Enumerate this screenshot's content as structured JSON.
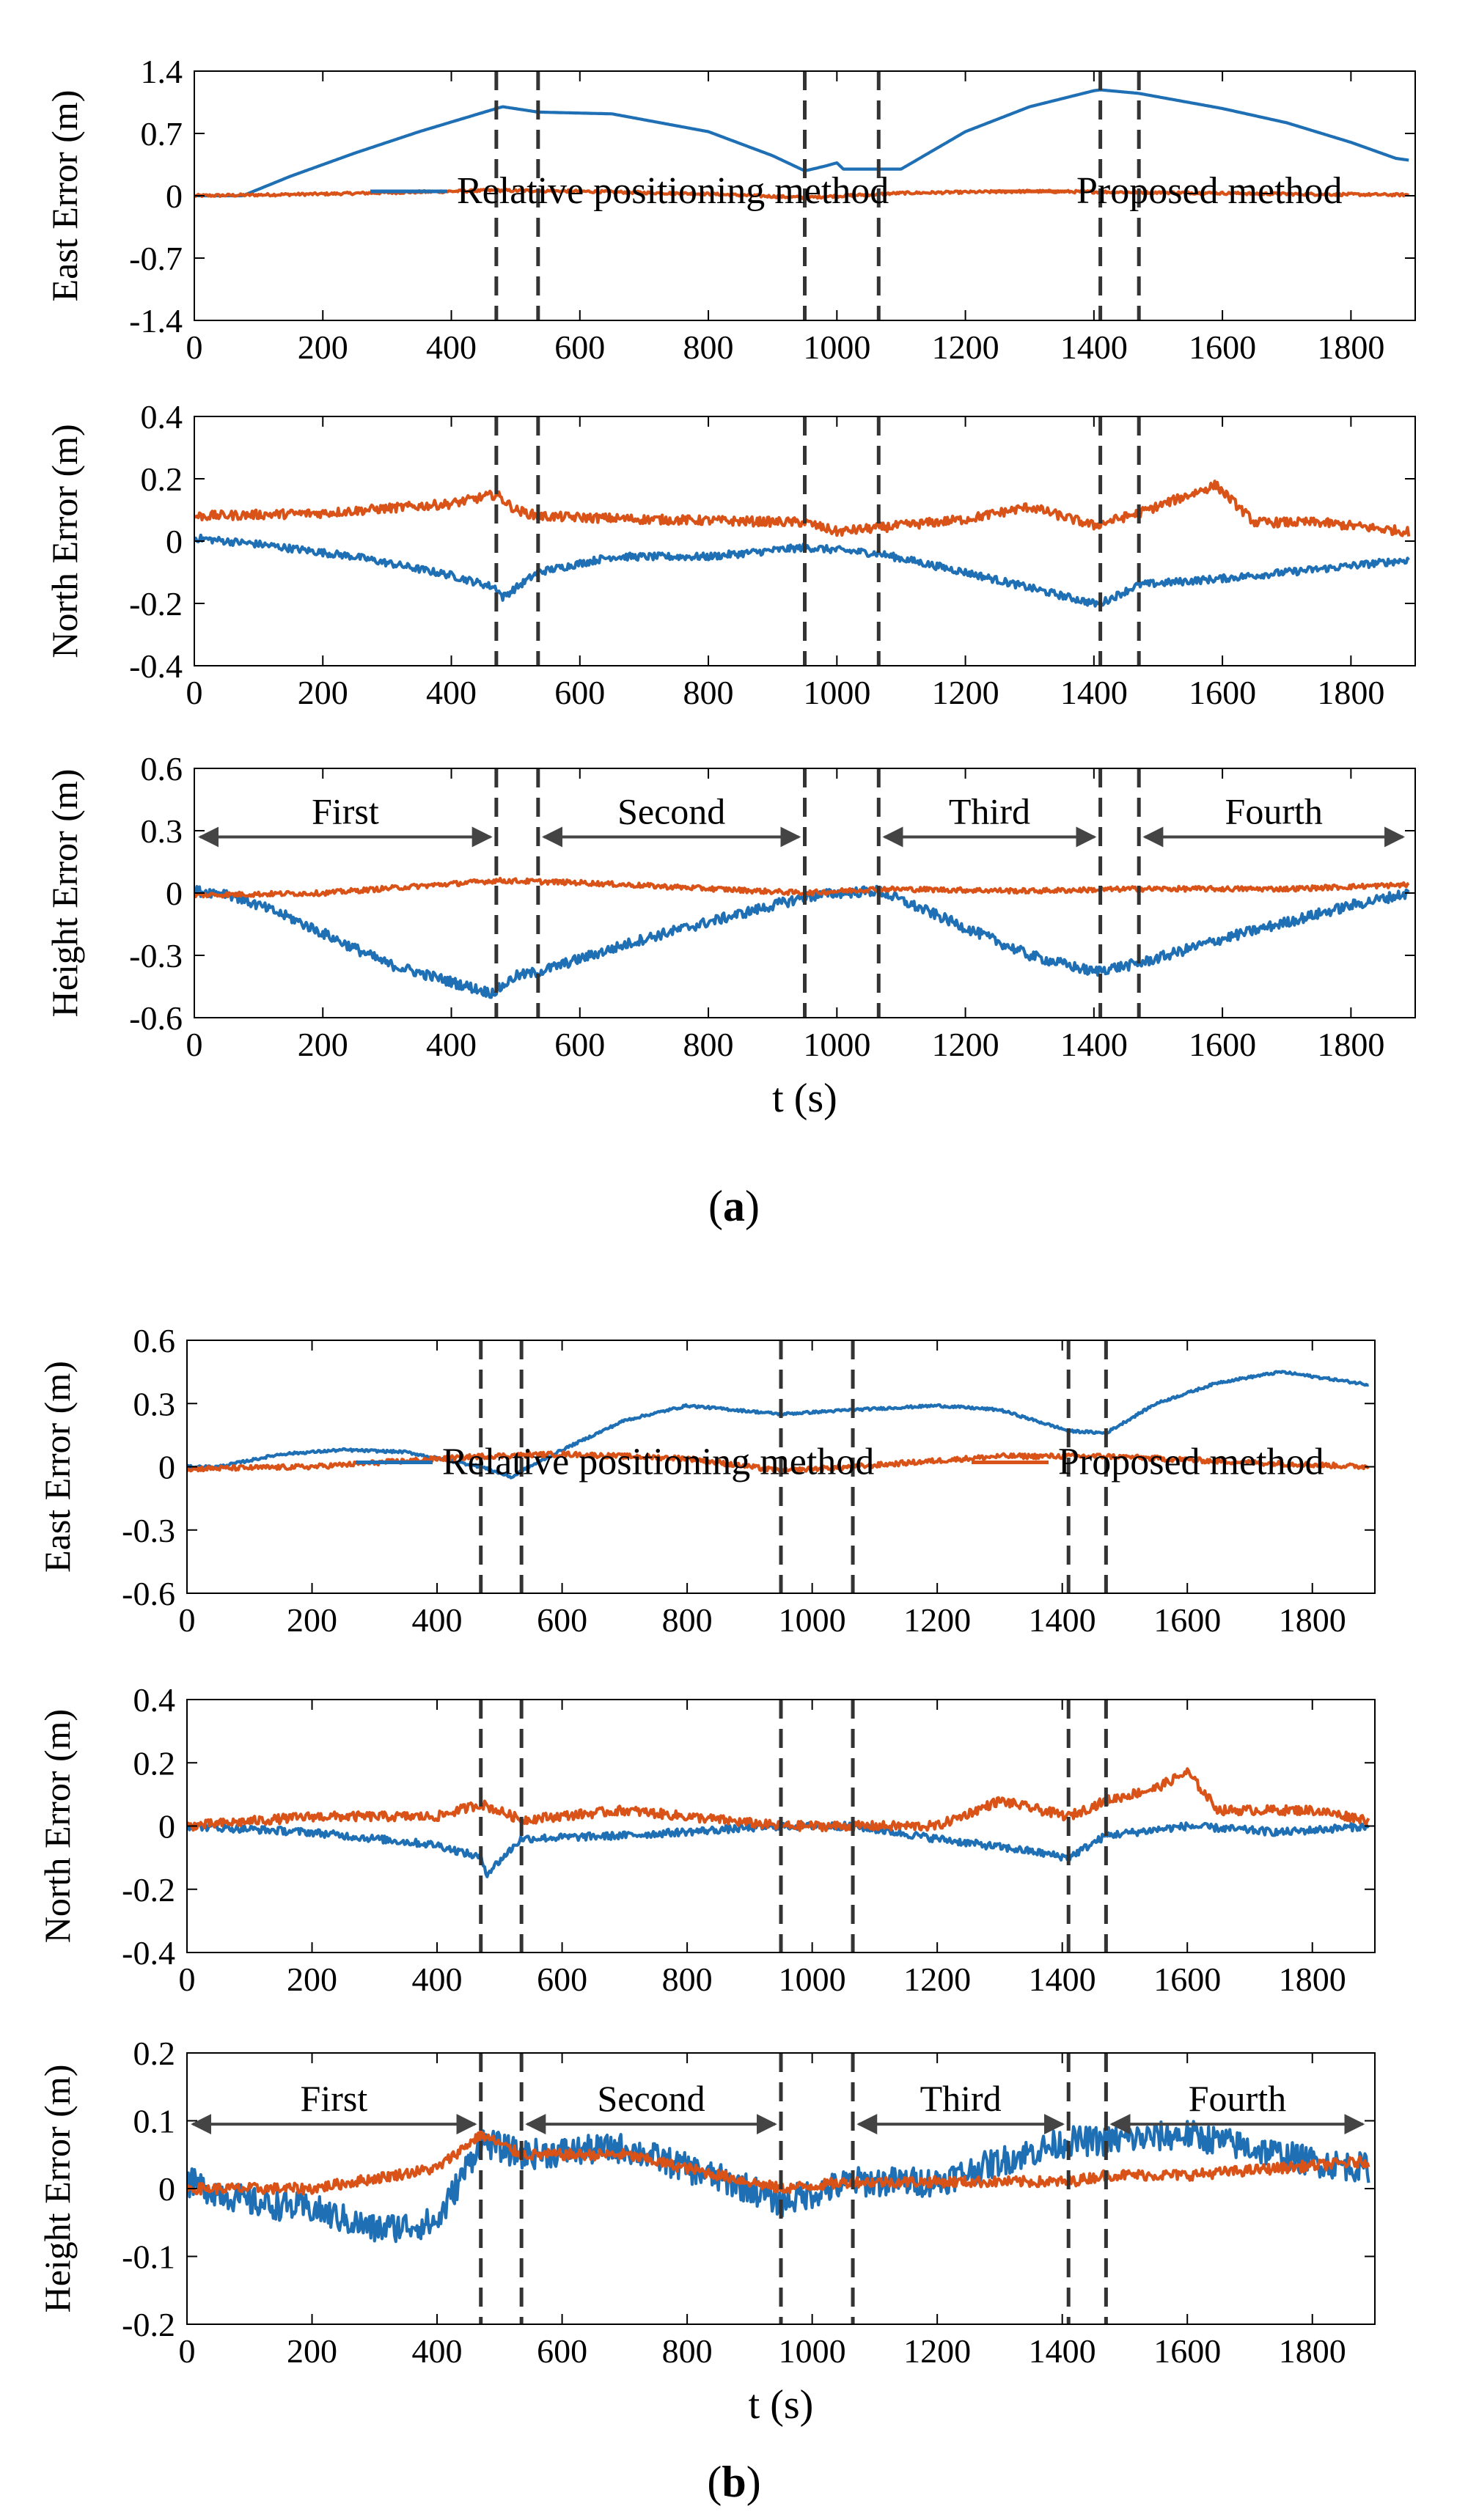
{
  "colors": {
    "relative": "#1f6fb5",
    "proposed": "#d95319",
    "divider": "#333333",
    "axis": "#000000"
  },
  "panels": [
    {
      "id": "a",
      "caption_label": "a",
      "caption_open": "(",
      "caption_close": ")",
      "xlabel": "t (s)"
    },
    {
      "id": "b",
      "caption_label": "b",
      "caption_open": "(",
      "caption_close": ")",
      "xlabel": "t (s)"
    }
  ],
  "chart_data": [
    {
      "type": "line",
      "panel": "a",
      "title": "East Error (m)",
      "ylabel": "East Error (m)",
      "xlim": [
        0,
        1900
      ],
      "ylim": [
        -1.4,
        1.4
      ],
      "xticks": [
        0,
        200,
        400,
        600,
        800,
        1000,
        1200,
        1400,
        1600,
        1800
      ],
      "yticks": [
        -1.4,
        -0.7,
        0,
        0.7,
        1.4
      ],
      "ytick_labels": [
        "-1.4",
        "-0.7",
        "0",
        "0.7",
        "1.4"
      ],
      "dividers": [
        470,
        535,
        950,
        1065,
        1410,
        1470
      ],
      "legend": [
        {
          "name": "Relative positioning method",
          "color": "#1f6fb5"
        },
        {
          "name": "Proposed method",
          "color": "#d95319"
        }
      ],
      "series": [
        {
          "name": "Relative positioning method",
          "color": "#1f6fb5",
          "x": [
            0,
            75,
            150,
            250,
            350,
            470,
            480,
            535,
            650,
            800,
            900,
            950,
            980,
            1000,
            1010,
            1065,
            1100,
            1200,
            1300,
            1400,
            1410,
            1470,
            1600,
            1700,
            1800,
            1870,
            1890
          ],
          "y": [
            0,
            0,
            0.22,
            0.48,
            0.72,
            0.98,
            1.0,
            0.94,
            0.92,
            0.72,
            0.45,
            0.28,
            0.33,
            0.37,
            0.3,
            0.3,
            0.3,
            0.72,
            1.0,
            1.18,
            1.19,
            1.15,
            0.98,
            0.82,
            0.6,
            0.42,
            0.4
          ],
          "noise": 0.0
        },
        {
          "name": "Proposed method",
          "color": "#d95319",
          "x": [
            0,
            200,
            470,
            600,
            800,
            950,
            1100,
            1300,
            1470,
            1700,
            1890
          ],
          "y": [
            0,
            0.02,
            0.06,
            0.05,
            0.02,
            -0.02,
            0.03,
            0.05,
            0.04,
            0.02,
            0.01
          ],
          "noise": 0.015
        }
      ]
    },
    {
      "type": "line",
      "panel": "a",
      "title": "North Error (m)",
      "ylabel": "North Error (m)",
      "xlim": [
        0,
        1900
      ],
      "ylim": [
        -0.4,
        0.4
      ],
      "xticks": [
        0,
        200,
        400,
        600,
        800,
        1000,
        1200,
        1400,
        1600,
        1800
      ],
      "yticks": [
        -0.4,
        -0.2,
        0,
        0.2,
        0.4
      ],
      "ytick_labels": [
        "-0.4",
        "-0.2",
        "0",
        "0.2",
        "0.4"
      ],
      "dividers": [
        470,
        535,
        950,
        1065,
        1410,
        1470
      ],
      "series": [
        {
          "name": "Relative positioning method",
          "color": "#1f6fb5",
          "x": [
            0,
            100,
            250,
            400,
            470,
            480,
            535,
            650,
            800,
            950,
            1065,
            1200,
            1300,
            1400,
            1410,
            1470,
            1600,
            1750,
            1890
          ],
          "y": [
            0.01,
            -0.01,
            -0.05,
            -0.11,
            -0.15,
            -0.18,
            -0.1,
            -0.05,
            -0.05,
            -0.02,
            -0.04,
            -0.1,
            -0.15,
            -0.2,
            -0.2,
            -0.14,
            -0.12,
            -0.09,
            -0.06
          ],
          "noise": 0.012
        },
        {
          "name": "Proposed method",
          "color": "#d95319",
          "x": [
            0,
            200,
            400,
            470,
            500,
            535,
            700,
            950,
            1000,
            1200,
            1300,
            1400,
            1470,
            1590,
            1650,
            1750,
            1890
          ],
          "y": [
            0.08,
            0.09,
            0.12,
            0.15,
            0.1,
            0.08,
            0.07,
            0.06,
            0.03,
            0.07,
            0.11,
            0.05,
            0.09,
            0.18,
            0.06,
            0.06,
            0.03
          ],
          "noise": 0.015
        }
      ]
    },
    {
      "type": "line",
      "panel": "a",
      "title": "Height Error (m)",
      "ylabel": "Height Error (m)",
      "xlim": [
        0,
        1900
      ],
      "ylim": [
        -0.6,
        0.6
      ],
      "xticks": [
        0,
        200,
        400,
        600,
        800,
        1000,
        1200,
        1400,
        1600,
        1800
      ],
      "yticks": [
        -0.6,
        -0.3,
        0,
        0.3,
        0.6
      ],
      "ytick_labels": [
        "-0.6",
        "-0.3",
        "0",
        "0.3",
        "0.6"
      ],
      "dividers": [
        470,
        535,
        950,
        1065,
        1410,
        1470
      ],
      "phases": [
        {
          "label": "First",
          "from": 0,
          "to": 470
        },
        {
          "label": "Second",
          "from": 535,
          "to": 950
        },
        {
          "label": "Third",
          "from": 1065,
          "to": 1410
        },
        {
          "label": "Fourth",
          "from": 1470,
          "to": 1890
        }
      ],
      "phase_y": 0.27,
      "xlabel": "t (s)",
      "series": [
        {
          "name": "Relative positioning method",
          "color": "#1f6fb5",
          "x": [
            0,
            50,
            150,
            300,
            460,
            470,
            500,
            535,
            700,
            900,
            950,
            1000,
            1065,
            1150,
            1300,
            1400,
            1410,
            1470,
            1600,
            1800,
            1890
          ],
          "y": [
            0.01,
            0.0,
            -0.12,
            -0.34,
            -0.48,
            -0.47,
            -0.4,
            -0.38,
            -0.22,
            -0.06,
            -0.02,
            0.0,
            0.01,
            -0.1,
            -0.3,
            -0.38,
            -0.37,
            -0.34,
            -0.22,
            -0.06,
            0.0
          ],
          "noise": 0.025
        },
        {
          "name": "Proposed method",
          "color": "#d95319",
          "x": [
            0,
            200,
            470,
            600,
            950,
            1065,
            1300,
            1470,
            1700,
            1890
          ],
          "y": [
            -0.01,
            0.0,
            0.06,
            0.05,
            0.0,
            0.02,
            0.01,
            0.02,
            0.02,
            0.04
          ],
          "noise": 0.012
        }
      ]
    },
    {
      "type": "line",
      "panel": "b",
      "title": "East Error (m)",
      "ylabel": "East Error (m)",
      "xlim": [
        0,
        1900
      ],
      "ylim": [
        -0.6,
        0.6
      ],
      "xticks": [
        0,
        200,
        400,
        600,
        800,
        1000,
        1200,
        1400,
        1600,
        1800
      ],
      "yticks": [
        -0.6,
        -0.3,
        0,
        0.3,
        0.6
      ],
      "ytick_labels": [
        "-0.6",
        "-0.3",
        "0",
        "0.3",
        "0.6"
      ],
      "dividers": [
        470,
        535,
        950,
        1065,
        1410,
        1470
      ],
      "legend": [
        {
          "name": "Relative positioning method",
          "color": "#1f6fb5"
        },
        {
          "name": "Proposed method",
          "color": "#d95319"
        }
      ],
      "series": [
        {
          "name": "Relative positioning method",
          "color": "#1f6fb5",
          "x": [
            0,
            50,
            150,
            250,
            350,
            470,
            520,
            535,
            600,
            700,
            800,
            950,
            1065,
            1200,
            1300,
            1400,
            1410,
            1470,
            1550,
            1650,
            1750,
            1890
          ],
          "y": [
            0,
            0,
            0.06,
            0.08,
            0.07,
            0.0,
            -0.05,
            -0.02,
            0.08,
            0.22,
            0.29,
            0.25,
            0.27,
            0.29,
            0.27,
            0.18,
            0.17,
            0.16,
            0.3,
            0.4,
            0.45,
            0.39
          ],
          "noise": 0.006
        },
        {
          "name": "Proposed method",
          "color": "#d95319",
          "x": [
            0,
            200,
            470,
            600,
            800,
            950,
            1065,
            1300,
            1470,
            1700,
            1890
          ],
          "y": [
            -0.01,
            0.0,
            0.05,
            0.06,
            0.04,
            -0.02,
            0.0,
            0.05,
            0.05,
            0.02,
            0.0
          ],
          "noise": 0.012
        }
      ]
    },
    {
      "type": "line",
      "panel": "b",
      "title": "North Error (m)",
      "ylabel": "North Error (m)",
      "xlim": [
        0,
        1900
      ],
      "ylim": [
        -0.4,
        0.4
      ],
      "xticks": [
        0,
        200,
        400,
        600,
        800,
        1000,
        1200,
        1400,
        1600,
        1800
      ],
      "yticks": [
        -0.4,
        -0.2,
        0,
        0.2,
        0.4
      ],
      "ytick_labels": [
        "-0.4",
        "-0.2",
        "0",
        "0.2",
        "0.4"
      ],
      "dividers": [
        470,
        535,
        950,
        1065,
        1410,
        1470
      ],
      "series": [
        {
          "name": "Relative positioning method",
          "color": "#1f6fb5",
          "x": [
            0,
            200,
            400,
            470,
            480,
            535,
            700,
            950,
            1065,
            1200,
            1350,
            1410,
            1470,
            1600,
            1750,
            1890
          ],
          "y": [
            0.0,
            -0.02,
            -0.06,
            -0.1,
            -0.15,
            -0.04,
            -0.03,
            0.0,
            0.0,
            -0.04,
            -0.08,
            -0.1,
            -0.03,
            0.0,
            -0.02,
            0.0
          ],
          "noise": 0.012
        },
        {
          "name": "Proposed method",
          "color": "#d95319",
          "x": [
            0,
            200,
            400,
            470,
            535,
            700,
            800,
            950,
            1065,
            1200,
            1300,
            1410,
            1470,
            1550,
            1600,
            1650,
            1800,
            1890
          ],
          "y": [
            0.0,
            0.03,
            0.03,
            0.07,
            0.02,
            0.05,
            0.03,
            0.0,
            0.0,
            0.0,
            0.08,
            0.03,
            0.08,
            0.12,
            0.17,
            0.05,
            0.05,
            0.02
          ],
          "noise": 0.015
        }
      ]
    },
    {
      "type": "line",
      "panel": "b",
      "title": "Height Error (m)",
      "ylabel": "Height Error (m)",
      "xlim": [
        0,
        1900
      ],
      "ylim": [
        -0.2,
        0.2
      ],
      "xticks": [
        0,
        200,
        400,
        600,
        800,
        1000,
        1200,
        1400,
        1600,
        1800
      ],
      "yticks": [
        -0.2,
        -0.1,
        0,
        0.1,
        0.2
      ],
      "ytick_labels": [
        "-0.2",
        "-0.1",
        "0",
        "0.1",
        "0.2"
      ],
      "dividers": [
        470,
        535,
        950,
        1065,
        1410,
        1470
      ],
      "phases": [
        {
          "label": "First",
          "from": 0,
          "to": 470
        },
        {
          "label": "Second",
          "from": 535,
          "to": 950
        },
        {
          "label": "Third",
          "from": 1065,
          "to": 1410
        },
        {
          "label": "Fourth",
          "from": 1470,
          "to": 1890
        }
      ],
      "phase_y": 0.095,
      "xlabel": "t (s)",
      "series": [
        {
          "name": "Relative positioning method",
          "color": "#1f6fb5",
          "x": [
            0,
            100,
            200,
            300,
            400,
            470,
            535,
            700,
            900,
            950,
            1065,
            1200,
            1300,
            1410,
            1470,
            1600,
            1800,
            1890
          ],
          "y": [
            0.01,
            -0.02,
            -0.03,
            -0.06,
            -0.05,
            0.07,
            0.05,
            0.06,
            0.0,
            -0.02,
            0.01,
            0.01,
            0.04,
            0.07,
            0.07,
            0.08,
            0.04,
            0.03
          ],
          "noise": 0.022
        },
        {
          "name": "Proposed method",
          "color": "#d95319",
          "x": [
            0,
            200,
            400,
            470,
            535,
            700,
            950,
            1065,
            1300,
            1410,
            1470,
            1600,
            1890
          ],
          "y": [
            0.0,
            0.0,
            0.03,
            0.08,
            0.05,
            0.05,
            0.0,
            0.01,
            0.01,
            0.01,
            0.02,
            0.02,
            0.04
          ],
          "noise": 0.008
        }
      ]
    }
  ]
}
